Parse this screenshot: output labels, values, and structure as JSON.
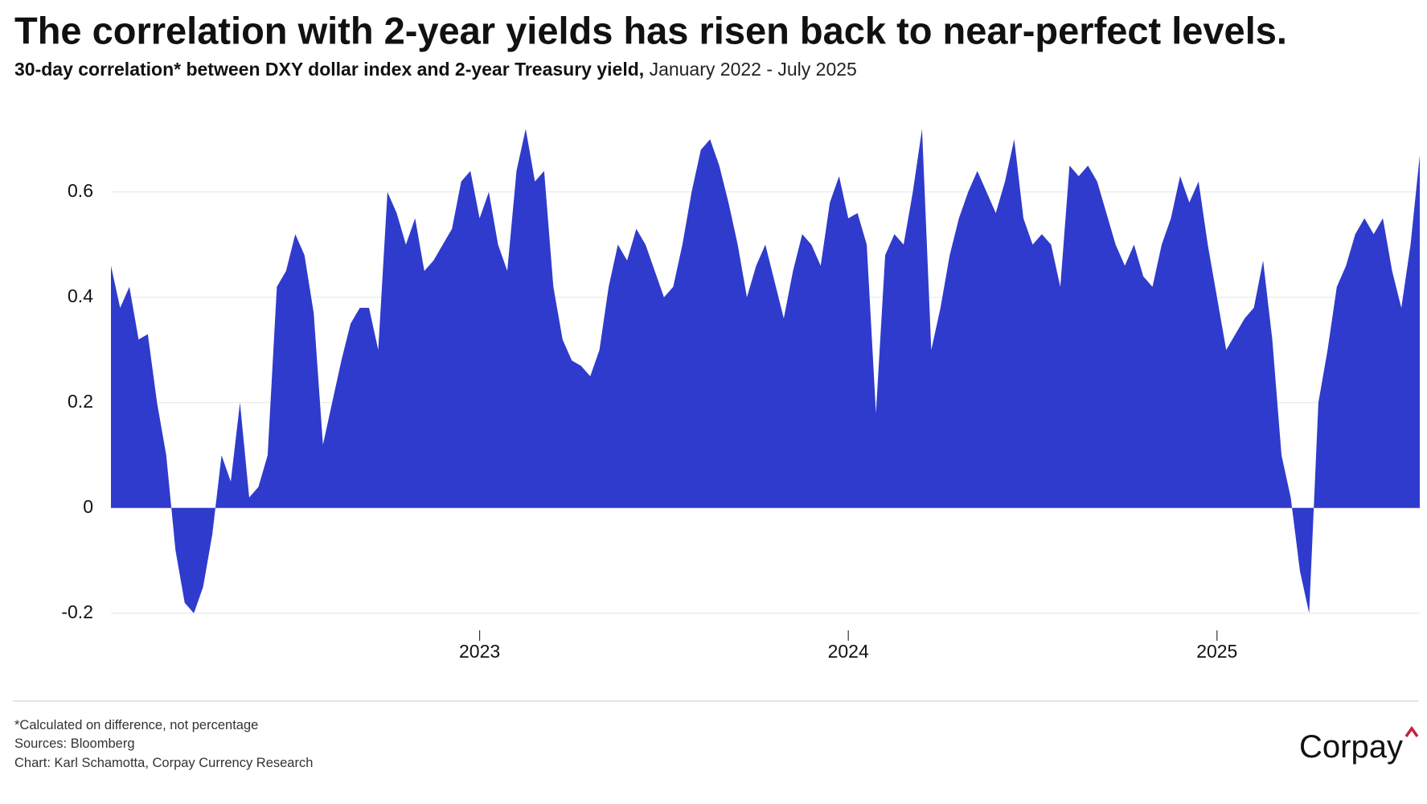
{
  "chart_data": {
    "type": "area",
    "title": "The correlation with 2-year yields has risen back to near-perfect levels.",
    "subtitle": "30-day correlation* between DXY dollar index and 2-year Treasury yield,",
    "subtitle_period": "January 2022 - July 2025",
    "notes": [
      "*Calculated on difference, not percentage",
      "Sources: Bloomberg",
      "Chart: Karl Schamotta, Corpay Currency Research"
    ],
    "logo": "Corpay",
    "color": "#2f3bcc",
    "grid": true,
    "xlim": [
      2022,
      2025.55
    ],
    "xticks": [
      2023,
      2024,
      2025
    ],
    "ylim": [
      -0.24,
      0.76
    ],
    "yticks": [
      -0.2,
      0,
      0.2,
      0.4,
      0.6
    ],
    "x": [
      2022,
      2022.025,
      2022.05,
      2022.075,
      2022.1,
      2022.125,
      2022.15,
      2022.175,
      2022.2,
      2022.225,
      2022.25,
      2022.275,
      2022.3,
      2022.325,
      2022.35,
      2022.375,
      2022.4,
      2022.425,
      2022.45,
      2022.475,
      2022.5,
      2022.525,
      2022.55,
      2022.575,
      2022.6,
      2022.625,
      2022.65,
      2022.675,
      2022.7,
      2022.725,
      2022.75,
      2022.775,
      2022.8,
      2022.825,
      2022.85,
      2022.875,
      2022.9,
      2022.925,
      2022.95,
      2022.975,
      2023,
      2023.025,
      2023.05,
      2023.075,
      2023.1,
      2023.125,
      2023.15,
      2023.175,
      2023.2,
      2023.225,
      2023.25,
      2023.275,
      2023.3,
      2023.325,
      2023.35,
      2023.375,
      2023.4,
      2023.425,
      2023.45,
      2023.475,
      2023.5,
      2023.525,
      2023.55,
      2023.575,
      2023.6,
      2023.625,
      2023.65,
      2023.675,
      2023.7,
      2023.725,
      2023.75,
      2023.775,
      2023.8,
      2023.825,
      2023.85,
      2023.875,
      2023.9,
      2023.925,
      2023.95,
      2023.975,
      2024,
      2024.025,
      2024.05,
      2024.075,
      2024.1,
      2024.125,
      2024.15,
      2024.175,
      2024.2,
      2024.225,
      2024.25,
      2024.275,
      2024.3,
      2024.325,
      2024.35,
      2024.375,
      2024.4,
      2024.425,
      2024.45,
      2024.475,
      2024.5,
      2024.525,
      2024.55,
      2024.575,
      2024.6,
      2024.625,
      2024.65,
      2024.675,
      2024.7,
      2024.725,
      2024.75,
      2024.775,
      2024.8,
      2024.825,
      2024.85,
      2024.875,
      2024.9,
      2024.925,
      2024.95,
      2024.975,
      2025,
      2025.025,
      2025.05,
      2025.075,
      2025.1,
      2025.125,
      2025.15,
      2025.175,
      2025.2,
      2025.225,
      2025.25,
      2025.275,
      2025.3,
      2025.325,
      2025.35,
      2025.375,
      2025.4,
      2025.425,
      2025.45,
      2025.475,
      2025.5,
      2025.525,
      2025.55
    ],
    "values": [
      0.46,
      0.38,
      0.42,
      0.32,
      0.33,
      0.2,
      0.1,
      -0.08,
      -0.18,
      -0.2,
      -0.15,
      -0.05,
      0.1,
      0.05,
      0.2,
      0.02,
      0.04,
      0.1,
      0.42,
      0.45,
      0.52,
      0.48,
      0.37,
      0.12,
      0.2,
      0.28,
      0.35,
      0.38,
      0.38,
      0.3,
      0.6,
      0.56,
      0.5,
      0.55,
      0.45,
      0.47,
      0.5,
      0.53,
      0.62,
      0.64,
      0.55,
      0.6,
      0.5,
      0.45,
      0.64,
      0.72,
      0.62,
      0.64,
      0.42,
      0.32,
      0.28,
      0.27,
      0.25,
      0.3,
      0.42,
      0.5,
      0.47,
      0.53,
      0.5,
      0.45,
      0.4,
      0.42,
      0.5,
      0.6,
      0.68,
      0.7,
      0.65,
      0.58,
      0.5,
      0.4,
      0.46,
      0.5,
      0.43,
      0.36,
      0.45,
      0.52,
      0.5,
      0.46,
      0.58,
      0.63,
      0.55,
      0.56,
      0.5,
      0.18,
      0.48,
      0.52,
      0.5,
      0.6,
      0.72,
      0.3,
      0.38,
      0.48,
      0.55,
      0.6,
      0.64,
      0.6,
      0.56,
      0.62,
      0.7,
      0.55,
      0.5,
      0.52,
      0.5,
      0.42,
      0.65,
      0.63,
      0.65,
      0.62,
      0.56,
      0.5,
      0.46,
      0.5,
      0.44,
      0.42,
      0.5,
      0.55,
      0.63,
      0.58,
      0.62,
      0.5,
      0.4,
      0.3,
      0.33,
      0.36,
      0.38,
      0.47,
      0.32,
      0.1,
      0.02,
      -0.12,
      -0.2,
      0.2,
      0.3,
      0.42,
      0.46,
      0.52,
      0.55,
      0.52,
      0.55,
      0.45,
      0.38,
      0.5,
      0.67
    ]
  }
}
